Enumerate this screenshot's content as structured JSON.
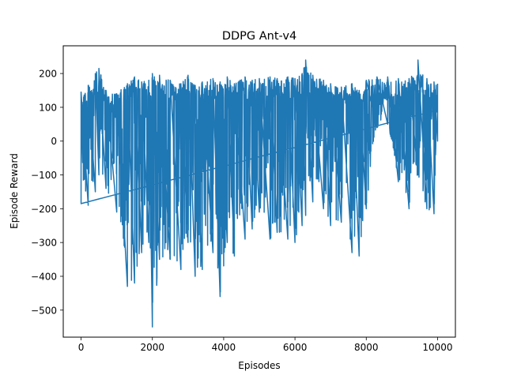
{
  "chart_data": {
    "type": "line",
    "title": "DDPG  Ant-v4",
    "xlabel": "Episodes",
    "ylabel": "Episode Reward",
    "xlim": [
      -500,
      10500
    ],
    "ylim": [
      -580,
      282
    ],
    "xticks": [
      0,
      2000,
      4000,
      6000,
      8000,
      10000
    ],
    "yticks": [
      -500,
      -400,
      -300,
      -200,
      -100,
      0,
      100,
      200
    ],
    "grid": false,
    "legend": "none",
    "series_color": "#1f77b4",
    "series": [
      {
        "x_start": 0,
        "x_end": 10000,
        "envelope": [
          {
            "x": 0,
            "high": 145,
            "low": -185
          },
          {
            "x": 200,
            "high": 165,
            "low": -190
          },
          {
            "x": 400,
            "high": 200,
            "low": -150
          },
          {
            "x": 500,
            "high": 215,
            "low": -100
          },
          {
            "x": 700,
            "high": 150,
            "low": -140
          },
          {
            "x": 1000,
            "high": 140,
            "low": -210
          },
          {
            "x": 1300,
            "high": 170,
            "low": -430
          },
          {
            "x": 1500,
            "high": 190,
            "low": -420
          },
          {
            "x": 1700,
            "high": 175,
            "low": -330
          },
          {
            "x": 1900,
            "high": 180,
            "low": -300
          },
          {
            "x": 2000,
            "high": 200,
            "low": -550
          },
          {
            "x": 2200,
            "high": 195,
            "low": -350
          },
          {
            "x": 2500,
            "high": 180,
            "low": -350
          },
          {
            "x": 2800,
            "high": 170,
            "low": -380
          },
          {
            "x": 3000,
            "high": 195,
            "low": -300
          },
          {
            "x": 3200,
            "high": 165,
            "low": -400
          },
          {
            "x": 3400,
            "high": 175,
            "low": -380
          },
          {
            "x": 3700,
            "high": 185,
            "low": -330
          },
          {
            "x": 3900,
            "high": 175,
            "low": -460
          },
          {
            "x": 4100,
            "high": 190,
            "low": -300
          },
          {
            "x": 4300,
            "high": 170,
            "low": -340
          },
          {
            "x": 4600,
            "high": 190,
            "low": -290
          },
          {
            "x": 4800,
            "high": 180,
            "low": -260
          },
          {
            "x": 5000,
            "high": 185,
            "low": -210
          },
          {
            "x": 5300,
            "high": 190,
            "low": -290
          },
          {
            "x": 5500,
            "high": 185,
            "low": -270
          },
          {
            "x": 5800,
            "high": 190,
            "low": -290
          },
          {
            "x": 6000,
            "high": 185,
            "low": -300
          },
          {
            "x": 6200,
            "high": 200,
            "low": -250
          },
          {
            "x": 6300,
            "high": 240,
            "low": -220
          },
          {
            "x": 6500,
            "high": 195,
            "low": -180
          },
          {
            "x": 6800,
            "high": 180,
            "low": -200
          },
          {
            "x": 7000,
            "high": 170,
            "low": -250
          },
          {
            "x": 7300,
            "high": 160,
            "low": -240
          },
          {
            "x": 7600,
            "high": 170,
            "low": -330
          },
          {
            "x": 7800,
            "high": 150,
            "low": -340
          },
          {
            "x": 8000,
            "high": 180,
            "low": -200
          },
          {
            "x": 8300,
            "high": 190,
            "low": 40
          },
          {
            "x": 8600,
            "high": 190,
            "low": 50
          },
          {
            "x": 8900,
            "high": 185,
            "low": -120
          },
          {
            "x": 9200,
            "high": 185,
            "low": -200
          },
          {
            "x": 9450,
            "high": 240,
            "low": -100
          },
          {
            "x": 9700,
            "high": 185,
            "low": -200
          },
          {
            "x": 9900,
            "high": 175,
            "low": -215
          },
          {
            "x": 10000,
            "high": 170,
            "low": 0
          }
        ]
      }
    ]
  }
}
